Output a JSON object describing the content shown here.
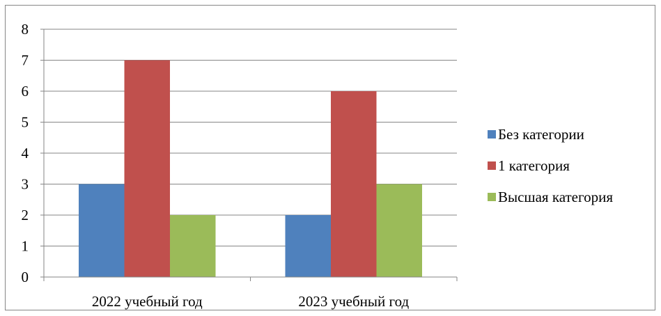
{
  "chart_data": {
    "type": "bar",
    "title": "",
    "xlabel": "",
    "ylabel": "",
    "categories": [
      "2022 учебный год",
      "2023 учебный год"
    ],
    "series": [
      {
        "name": "Без категории",
        "values": [
          3,
          2
        ],
        "color": "#4F81BD"
      },
      {
        "name": "1 категория",
        "values": [
          7,
          6
        ],
        "color": "#C0504D"
      },
      {
        "name": "Высшая категория",
        "values": [
          2,
          3
        ],
        "color": "#9BBB59"
      }
    ],
    "ylim": [
      0,
      8
    ],
    "yticks": [
      "0",
      "1",
      "2",
      "3",
      "4",
      "5",
      "6",
      "7",
      "8"
    ],
    "grid": true,
    "legend_position": "right"
  },
  "colors": {
    "gridline": "#868686",
    "axis": "#868686",
    "frame": "#868686"
  }
}
